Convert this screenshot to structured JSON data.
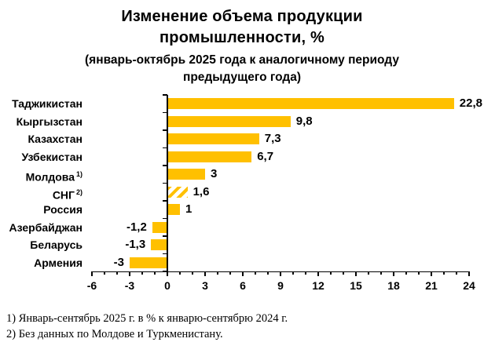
{
  "header": {
    "title_line1": "Изменение объема продукции",
    "title_line2": "промышленности, %",
    "subtitle_line1": "(январь-октябрь 2025 года к аналогичному периоду",
    "subtitle_line2": "предыдущего года)"
  },
  "chart_data": {
    "type": "bar",
    "orientation": "horizontal",
    "title": "Изменение объема продукции промышленности, %",
    "subtitle": "(январь-октябрь 2025 года к аналогичному периоду предыдущего года)",
    "categories": [
      "Таджикистан",
      "Кыргызстан",
      "Казахстан",
      "Узбекистан",
      "Молдова",
      "СНГ",
      "Россия",
      "Азербайджан",
      "Беларусь",
      "Армения"
    ],
    "category_superscripts": [
      "",
      "",
      "",
      "",
      "1)",
      "2)",
      "",
      "",
      "",
      ""
    ],
    "values": [
      22.8,
      9.8,
      7.3,
      6.7,
      3,
      1.6,
      1,
      -1.2,
      -1.3,
      -3
    ],
    "value_labels": [
      "22,8",
      "9,8",
      "7,3",
      "6,7",
      "3",
      "1,6",
      "1",
      "-1,2",
      "-1,3",
      "-3"
    ],
    "hatched": [
      false,
      false,
      false,
      false,
      false,
      true,
      false,
      false,
      false,
      false
    ],
    "xlim": [
      -6,
      24
    ],
    "x_major_step": 3,
    "x_minor_step": 1,
    "x_tick_labels": [
      "-6",
      "-3",
      "0",
      "3",
      "6",
      "9",
      "12",
      "15",
      "18",
      "21",
      "24"
    ],
    "bar_color": "#FFC000",
    "hatch_background": "#FFFFFF",
    "axis_color": "#000000",
    "grid": false,
    "legend": false
  },
  "footnotes": [
    "1) Январь-сентябрь 2025 г. в % к январю-сентябрю 2024 г.",
    "2) Без данных по Молдове и Туркменистану."
  ]
}
